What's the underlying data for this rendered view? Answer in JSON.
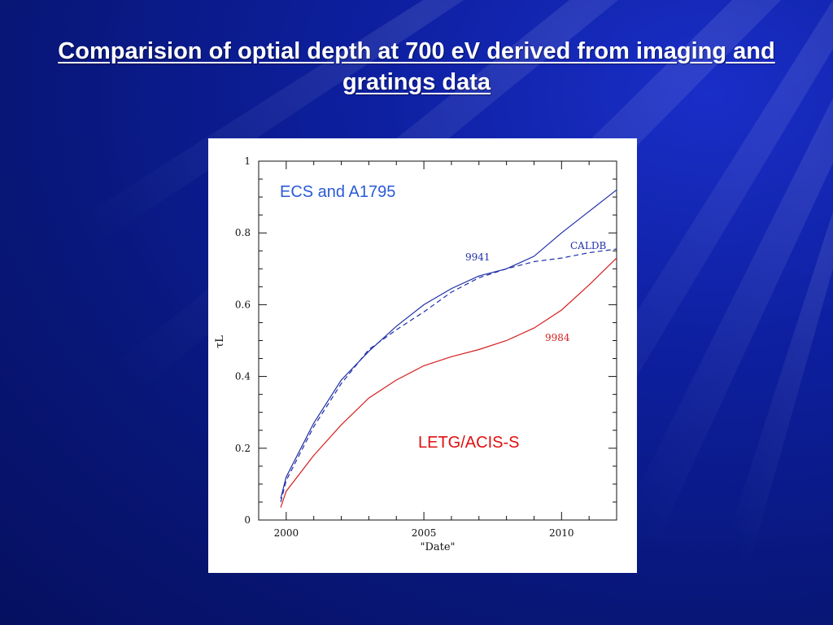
{
  "slide": {
    "title": "Comparision of optial depth at 700 eV derived from imaging and gratings data"
  },
  "colors": {
    "blue_series": "#1e2fa8",
    "red_series": "#d42020",
    "annot_blue": "#2a5ad8",
    "annot_red": "#e01010"
  },
  "chart_data": {
    "type": "line",
    "xlabel": "\"Date\"",
    "ylabel": "τL",
    "xlim": [
      1999,
      2012
    ],
    "ylim": [
      0,
      1
    ],
    "xticks": [
      2000,
      2005,
      2010
    ],
    "yticks": [
      0,
      0.2,
      0.4,
      0.6,
      0.8,
      1
    ],
    "ytick_labels": [
      "0",
      "0.2",
      "0.4",
      "0.6",
      "0.8",
      "1"
    ],
    "series": [
      {
        "name": "9941",
        "style": "solid",
        "color": "blue",
        "x": [
          1999.8,
          2000,
          2001,
          2002,
          2003,
          2004,
          2005,
          2006,
          2007,
          2008,
          2009,
          2010,
          2011,
          2012
        ],
        "y": [
          0.06,
          0.12,
          0.27,
          0.39,
          0.47,
          0.54,
          0.6,
          0.645,
          0.68,
          0.7,
          0.735,
          0.8,
          0.86,
          0.92
        ]
      },
      {
        "name": "CALDB",
        "style": "dashed",
        "color": "blue",
        "x": [
          1999.8,
          2000,
          2001,
          2002,
          2003,
          2004,
          2005,
          2006,
          2007,
          2008,
          2009,
          2010,
          2011,
          2012
        ],
        "y": [
          0.05,
          0.11,
          0.26,
          0.38,
          0.475,
          0.53,
          0.58,
          0.635,
          0.675,
          0.7,
          0.72,
          0.73,
          0.745,
          0.755
        ]
      },
      {
        "name": "9984",
        "style": "solid",
        "color": "red",
        "x": [
          1999.8,
          2000,
          2001,
          2002,
          2003,
          2004,
          2005,
          2006,
          2007,
          2008,
          2009,
          2010,
          2011,
          2012
        ],
        "y": [
          0.035,
          0.08,
          0.18,
          0.265,
          0.34,
          0.39,
          0.43,
          0.455,
          0.475,
          0.5,
          0.535,
          0.585,
          0.655,
          0.73
        ]
      }
    ],
    "annotations": [
      "ECS and A1795",
      "LETG/ACIS-S"
    ]
  }
}
